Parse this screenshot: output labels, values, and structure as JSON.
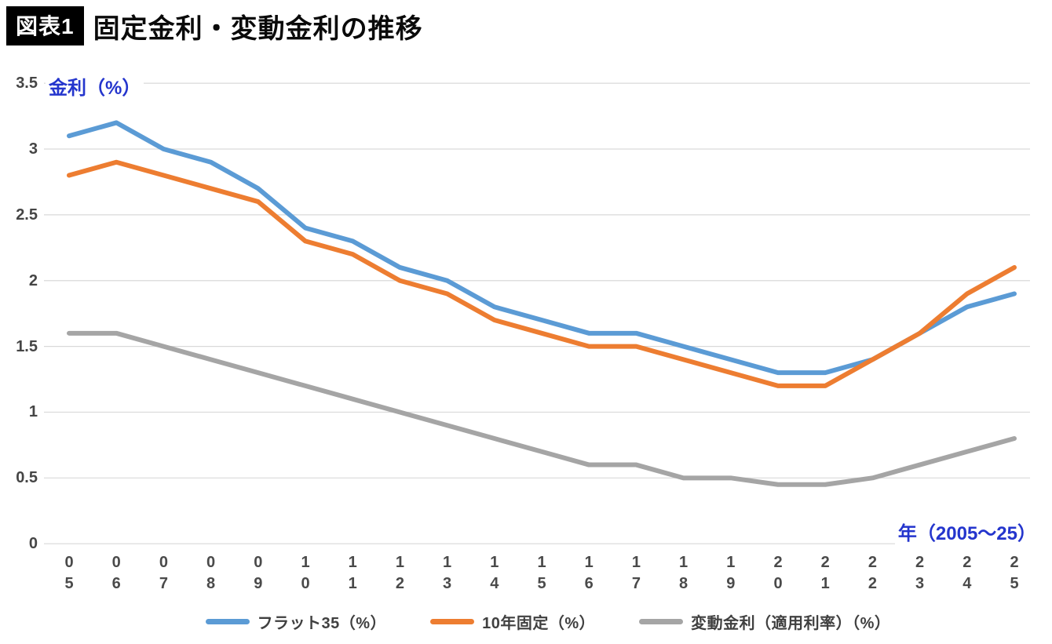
{
  "header": {
    "badge": "図表1",
    "title": "固定金利・変動金利の推移"
  },
  "chart_data": {
    "type": "line",
    "title": "固定金利・変動金利の推移",
    "x": [
      "05",
      "06",
      "07",
      "08",
      "09",
      "10",
      "11",
      "12",
      "13",
      "14",
      "15",
      "16",
      "17",
      "18",
      "19",
      "20",
      "21",
      "22",
      "23",
      "24",
      "25"
    ],
    "x_axis_label": "年（2005～25）",
    "y_axis_label": "金利（%）",
    "y_ticks": [
      "3.5",
      "3",
      "2.5",
      "2",
      "1.5",
      "1",
      "0.5",
      "0"
    ],
    "ylim": [
      0,
      3.5
    ],
    "grid": true,
    "gridline_color": "#d9d9d9",
    "axis_label_color": "#2435cd",
    "legend_position": "bottom",
    "series": [
      {
        "name": "フラット35（%）",
        "color": "#5B9BD5",
        "values": [
          3.1,
          3.2,
          3.0,
          2.9,
          2.7,
          2.4,
          2.3,
          2.1,
          2.0,
          1.8,
          1.7,
          1.6,
          1.6,
          1.5,
          1.4,
          1.3,
          1.3,
          1.4,
          1.6,
          1.8,
          1.9
        ]
      },
      {
        "name": "10年固定（%）",
        "color": "#ED7D31",
        "values": [
          2.8,
          2.9,
          2.8,
          2.7,
          2.6,
          2.3,
          2.2,
          2.0,
          1.9,
          1.7,
          1.6,
          1.5,
          1.5,
          1.4,
          1.3,
          1.2,
          1.2,
          1.4,
          1.6,
          1.9,
          2.1
        ]
      },
      {
        "name": "変動金利（適用利率）（%）",
        "color": "#A5A5A5",
        "values": [
          1.6,
          1.6,
          1.5,
          1.4,
          1.3,
          1.2,
          1.1,
          1.0,
          0.9,
          0.8,
          0.7,
          0.6,
          0.6,
          0.5,
          0.5,
          0.45,
          0.45,
          0.5,
          0.6,
          0.7,
          0.8
        ]
      }
    ]
  }
}
